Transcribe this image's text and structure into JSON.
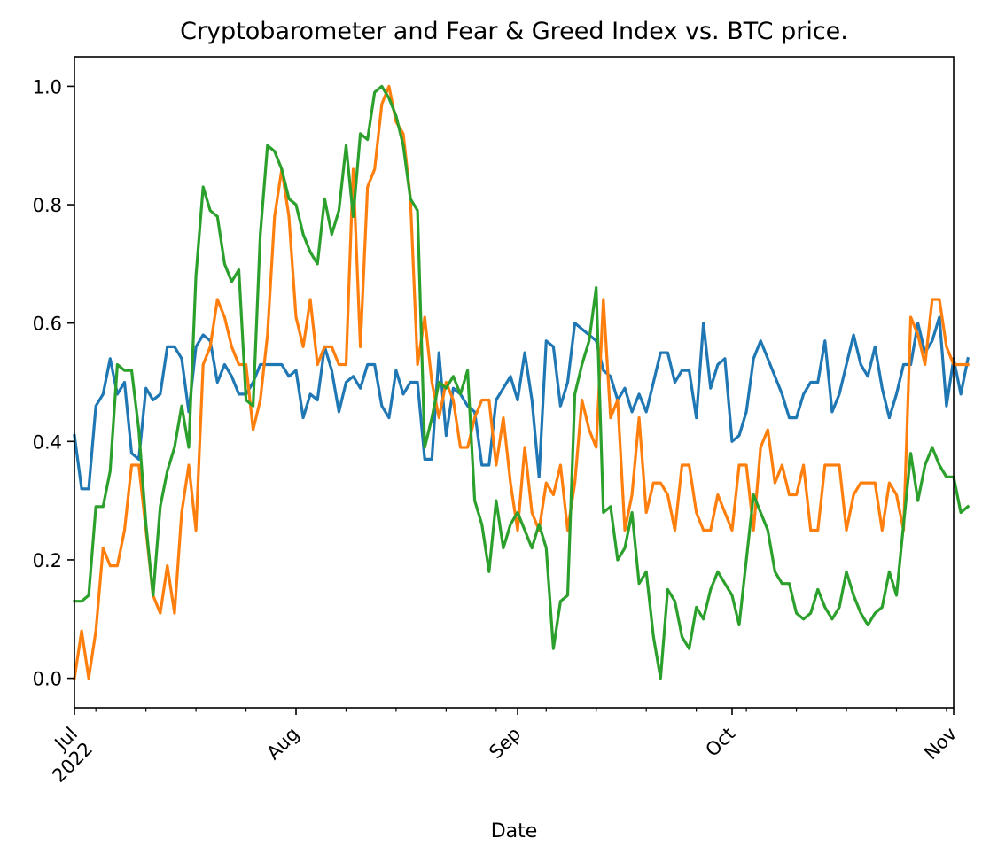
{
  "chart_data": {
    "type": "line",
    "title": "Cryptobarometer and Fear & Greed Index vs. BTC price.",
    "xlabel": "Date",
    "ylabel": "",
    "ylim": [
      -0.05,
      1.05
    ],
    "y_ticks": [
      0.0,
      0.2,
      0.4,
      0.6,
      0.8,
      1.0
    ],
    "y_tick_labels": [
      "0.0",
      "0.2",
      "0.4",
      "0.6",
      "0.8",
      "1.0"
    ],
    "x_start": "2022-07-01",
    "x_end": "2022-11-01",
    "x_ticks": [
      {
        "date": "2022-07-01",
        "label": "Jul",
        "sublabel": "2022"
      },
      {
        "date": "2022-08-01",
        "label": "Aug"
      },
      {
        "date": "2022-09-01",
        "label": "Sep"
      },
      {
        "date": "2022-10-01",
        "label": "Oct"
      },
      {
        "date": "2022-11-01",
        "label": "Nov"
      }
    ],
    "grid": false,
    "legend": "none",
    "series": [
      {
        "color": "#1f77b4",
        "values": [
          0.41,
          0.32,
          0.32,
          0.46,
          0.48,
          0.54,
          0.48,
          0.5,
          0.38,
          0.37,
          0.49,
          0.47,
          0.48,
          0.56,
          0.56,
          0.54,
          0.45,
          0.56,
          0.58,
          0.57,
          0.5,
          0.53,
          0.51,
          0.48,
          0.48,
          0.5,
          0.53,
          0.53,
          0.53,
          0.53,
          0.51,
          0.52,
          0.44,
          0.48,
          0.47,
          0.56,
          0.52,
          0.45,
          0.5,
          0.51,
          0.49,
          0.53,
          0.53,
          0.46,
          0.44,
          0.52,
          0.48,
          0.5,
          0.5,
          0.37,
          0.37,
          0.55,
          0.41,
          0.49,
          0.48,
          0.46,
          0.45,
          0.36,
          0.36,
          0.47,
          0.49,
          0.51,
          0.47,
          0.55,
          0.47,
          0.34,
          0.57,
          0.56,
          0.46,
          0.5,
          0.6,
          0.59,
          0.58,
          0.57,
          0.52,
          0.51,
          0.47,
          0.49,
          0.45,
          0.48,
          0.45,
          0.5,
          0.55,
          0.55,
          0.5,
          0.52,
          0.52,
          0.44,
          0.6,
          0.49,
          0.53,
          0.54,
          0.4,
          0.41,
          0.45,
          0.54,
          0.57,
          0.54,
          0.51,
          0.48,
          0.44,
          0.44,
          0.48,
          0.5,
          0.5,
          0.57,
          0.45,
          0.48,
          0.53,
          0.58,
          0.53,
          0.51,
          0.56,
          0.49,
          0.44,
          0.48,
          0.53,
          0.53,
          0.6,
          0.55,
          0.57,
          0.61,
          0.46,
          0.54,
          0.48,
          0.54
        ]
      },
      {
        "color": "#ff7f0e",
        "values": [
          0.0,
          0.08,
          0.0,
          0.08,
          0.22,
          0.19,
          0.19,
          0.25,
          0.36,
          0.36,
          0.25,
          0.14,
          0.11,
          0.19,
          0.11,
          0.28,
          0.36,
          0.25,
          0.53,
          0.56,
          0.64,
          0.61,
          0.56,
          0.53,
          0.53,
          0.42,
          0.47,
          0.58,
          0.78,
          0.86,
          0.78,
          0.61,
          0.56,
          0.64,
          0.53,
          0.56,
          0.56,
          0.53,
          0.53,
          0.86,
          0.56,
          0.83,
          0.86,
          0.97,
          1.0,
          0.94,
          0.92,
          0.81,
          0.53,
          0.61,
          0.5,
          0.44,
          0.5,
          0.47,
          0.39,
          0.39,
          0.44,
          0.47,
          0.47,
          0.36,
          0.44,
          0.33,
          0.25,
          0.39,
          0.28,
          0.25,
          0.33,
          0.31,
          0.36,
          0.25,
          0.33,
          0.47,
          0.42,
          0.39,
          0.64,
          0.44,
          0.47,
          0.25,
          0.31,
          0.44,
          0.28,
          0.33,
          0.33,
          0.31,
          0.25,
          0.36,
          0.36,
          0.28,
          0.25,
          0.25,
          0.31,
          0.28,
          0.25,
          0.36,
          0.36,
          0.25,
          0.39,
          0.42,
          0.33,
          0.36,
          0.31,
          0.31,
          0.36,
          0.25,
          0.25,
          0.36,
          0.36,
          0.36,
          0.25,
          0.31,
          0.33,
          0.33,
          0.33,
          0.25,
          0.33,
          0.31,
          0.25,
          0.61,
          0.58,
          0.53,
          0.64,
          0.64,
          0.56,
          0.53,
          0.53,
          0.53
        ]
      },
      {
        "color": "#2ca02c",
        "values": [
          0.13,
          0.13,
          0.14,
          0.29,
          0.29,
          0.35,
          0.53,
          0.52,
          0.52,
          0.42,
          0.26,
          0.14,
          0.29,
          0.35,
          0.39,
          0.46,
          0.39,
          0.68,
          0.83,
          0.79,
          0.78,
          0.7,
          0.67,
          0.69,
          0.47,
          0.46,
          0.75,
          0.9,
          0.89,
          0.86,
          0.81,
          0.8,
          0.75,
          0.72,
          0.7,
          0.81,
          0.75,
          0.79,
          0.9,
          0.78,
          0.92,
          0.91,
          0.99,
          1.0,
          0.98,
          0.95,
          0.9,
          0.81,
          0.79,
          0.39,
          0.44,
          0.5,
          0.49,
          0.51,
          0.48,
          0.52,
          0.3,
          0.26,
          0.18,
          0.3,
          0.22,
          0.26,
          0.28,
          0.25,
          0.22,
          0.26,
          0.22,
          0.05,
          0.13,
          0.14,
          0.48,
          0.53,
          0.57,
          0.66,
          0.28,
          0.29,
          0.2,
          0.22,
          0.28,
          0.16,
          0.18,
          0.07,
          0.0,
          0.15,
          0.13,
          0.07,
          0.05,
          0.12,
          0.1,
          0.15,
          0.18,
          0.16,
          0.14,
          0.09,
          0.2,
          0.31,
          0.28,
          0.25,
          0.18,
          0.16,
          0.16,
          0.11,
          0.1,
          0.11,
          0.15,
          0.12,
          0.1,
          0.12,
          0.18,
          0.14,
          0.11,
          0.09,
          0.11,
          0.12,
          0.18,
          0.14,
          0.26,
          0.38,
          0.3,
          0.36,
          0.39,
          0.36,
          0.34,
          0.34,
          0.28,
          0.29
        ]
      }
    ]
  }
}
